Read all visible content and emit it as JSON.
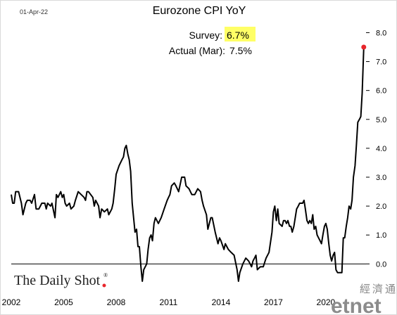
{
  "header": {
    "date": "01-Apr-22"
  },
  "chart_data": {
    "type": "line",
    "title": "Eurozone CPI YoY",
    "xlabel": "",
    "ylabel": "",
    "xlim": [
      2002.0,
      2022.3
    ],
    "ylim": [
      -0.6,
      8.4
    ],
    "x_ticks": [
      2002,
      2005,
      2008,
      2011,
      2014,
      2017,
      2020
    ],
    "x_tick_labels": [
      "2002",
      "2005",
      "2008",
      "2011",
      "2014",
      "2017",
      "2020"
    ],
    "y_ticks": [
      0.0,
      1.0,
      2.0,
      3.0,
      4.0,
      5.0,
      6.0,
      7.0,
      8.0
    ],
    "y_tick_labels": [
      "0.0",
      "1.0",
      "2.0",
      "3.0",
      "4.0",
      "5.0",
      "6.0",
      "7.0",
      "8.0"
    ],
    "y_axis_side": "right",
    "zero_line": true,
    "grid": false,
    "line_color": "#000000",
    "end_marker_color": "#e8262c",
    "annotations": {
      "survey_label": "Survey:",
      "survey_value": "6.7%",
      "survey_highlight": "#ffff66",
      "actual_label": "Actual (Mar):",
      "actual_value": "7.5%"
    },
    "series": [
      {
        "values": [
          [
            2002.0,
            2.4
          ],
          [
            2002.08,
            2.1
          ],
          [
            2002.17,
            2.1
          ],
          [
            2002.25,
            2.5
          ],
          [
            2002.42,
            2.5
          ],
          [
            2002.58,
            2.1
          ],
          [
            2002.67,
            1.7
          ],
          [
            2002.83,
            2.1
          ],
          [
            2002.92,
            2.2
          ],
          [
            2003.08,
            2.2
          ],
          [
            2003.17,
            2.1
          ],
          [
            2003.33,
            2.4
          ],
          [
            2003.42,
            1.9
          ],
          [
            2003.58,
            1.9
          ],
          [
            2003.75,
            2.1
          ],
          [
            2003.92,
            2.1
          ],
          [
            2004.0,
            1.9
          ],
          [
            2004.08,
            2.1
          ],
          [
            2004.25,
            2.0
          ],
          [
            2004.33,
            2.1
          ],
          [
            2004.5,
            1.6
          ],
          [
            2004.58,
            2.4
          ],
          [
            2004.67,
            2.3
          ],
          [
            2004.83,
            2.5
          ],
          [
            2004.92,
            2.3
          ],
          [
            2005.0,
            2.4
          ],
          [
            2005.08,
            2.1
          ],
          [
            2005.17,
            2.0
          ],
          [
            2005.33,
            2.1
          ],
          [
            2005.42,
            1.9
          ],
          [
            2005.58,
            2.0
          ],
          [
            2005.67,
            2.2
          ],
          [
            2005.83,
            2.5
          ],
          [
            2006.0,
            2.4
          ],
          [
            2006.17,
            2.3
          ],
          [
            2006.25,
            2.2
          ],
          [
            2006.33,
            2.5
          ],
          [
            2006.42,
            2.5
          ],
          [
            2006.67,
            2.3
          ],
          [
            2006.75,
            2.0
          ],
          [
            2006.83,
            2.2
          ],
          [
            2007.0,
            2.0
          ],
          [
            2007.08,
            1.6
          ],
          [
            2007.17,
            1.9
          ],
          [
            2007.33,
            1.8
          ],
          [
            2007.5,
            1.9
          ],
          [
            2007.58,
            1.7
          ],
          [
            2007.75,
            1.9
          ],
          [
            2007.83,
            2.1
          ],
          [
            2007.92,
            2.6
          ],
          [
            2008.0,
            3.1
          ],
          [
            2008.17,
            3.4
          ],
          [
            2008.33,
            3.6
          ],
          [
            2008.42,
            3.7
          ],
          [
            2008.5,
            4.0
          ],
          [
            2008.58,
            4.1
          ],
          [
            2008.67,
            3.8
          ],
          [
            2008.75,
            3.6
          ],
          [
            2008.83,
            3.2
          ],
          [
            2008.92,
            2.1
          ],
          [
            2009.0,
            1.6
          ],
          [
            2009.08,
            1.1
          ],
          [
            2009.17,
            1.2
          ],
          [
            2009.25,
            0.6
          ],
          [
            2009.33,
            0.6
          ],
          [
            2009.42,
            -0.1
          ],
          [
            2009.5,
            -0.6
          ],
          [
            2009.58,
            -0.2
          ],
          [
            2009.75,
            0.0
          ],
          [
            2009.83,
            0.5
          ],
          [
            2009.92,
            0.9
          ],
          [
            2010.0,
            1.0
          ],
          [
            2010.08,
            0.8
          ],
          [
            2010.17,
            1.4
          ],
          [
            2010.25,
            1.6
          ],
          [
            2010.42,
            1.4
          ],
          [
            2010.58,
            1.6
          ],
          [
            2010.75,
            1.9
          ],
          [
            2010.92,
            2.2
          ],
          [
            2011.0,
            2.3
          ],
          [
            2011.08,
            2.4
          ],
          [
            2011.17,
            2.7
          ],
          [
            2011.33,
            2.8
          ],
          [
            2011.42,
            2.7
          ],
          [
            2011.58,
            2.5
          ],
          [
            2011.75,
            3.0
          ],
          [
            2011.92,
            3.0
          ],
          [
            2012.0,
            2.7
          ],
          [
            2012.17,
            2.6
          ],
          [
            2012.33,
            2.4
          ],
          [
            2012.5,
            2.4
          ],
          [
            2012.67,
            2.6
          ],
          [
            2012.83,
            2.5
          ],
          [
            2012.92,
            2.2
          ],
          [
            2013.0,
            2.0
          ],
          [
            2013.17,
            1.7
          ],
          [
            2013.25,
            1.2
          ],
          [
            2013.42,
            1.6
          ],
          [
            2013.5,
            1.6
          ],
          [
            2013.67,
            1.1
          ],
          [
            2013.83,
            0.7
          ],
          [
            2013.92,
            0.9
          ],
          [
            2014.0,
            0.8
          ],
          [
            2014.17,
            0.5
          ],
          [
            2014.25,
            0.7
          ],
          [
            2014.42,
            0.5
          ],
          [
            2014.58,
            0.4
          ],
          [
            2014.75,
            0.3
          ],
          [
            2014.92,
            -0.2
          ],
          [
            2015.0,
            -0.6
          ],
          [
            2015.08,
            -0.3
          ],
          [
            2015.25,
            0.0
          ],
          [
            2015.42,
            0.2
          ],
          [
            2015.58,
            0.1
          ],
          [
            2015.75,
            -0.1
          ],
          [
            2015.83,
            0.1
          ],
          [
            2015.92,
            0.2
          ],
          [
            2016.0,
            0.3
          ],
          [
            2016.08,
            -0.2
          ],
          [
            2016.25,
            -0.1
          ],
          [
            2016.42,
            -0.1
          ],
          [
            2016.58,
            0.2
          ],
          [
            2016.75,
            0.4
          ],
          [
            2016.92,
            1.1
          ],
          [
            2017.0,
            1.8
          ],
          [
            2017.08,
            2.0
          ],
          [
            2017.17,
            1.5
          ],
          [
            2017.25,
            1.9
          ],
          [
            2017.33,
            1.4
          ],
          [
            2017.5,
            1.3
          ],
          [
            2017.58,
            1.5
          ],
          [
            2017.67,
            1.5
          ],
          [
            2017.75,
            1.4
          ],
          [
            2017.83,
            1.5
          ],
          [
            2017.92,
            1.3
          ],
          [
            2018.0,
            1.3
          ],
          [
            2018.08,
            1.1
          ],
          [
            2018.17,
            1.3
          ],
          [
            2018.33,
            1.9
          ],
          [
            2018.42,
            2.0
          ],
          [
            2018.5,
            2.1
          ],
          [
            2018.67,
            2.1
          ],
          [
            2018.75,
            2.2
          ],
          [
            2018.83,
            1.9
          ],
          [
            2018.92,
            1.5
          ],
          [
            2019.0,
            1.4
          ],
          [
            2019.08,
            1.5
          ],
          [
            2019.17,
            1.4
          ],
          [
            2019.25,
            1.7
          ],
          [
            2019.33,
            1.2
          ],
          [
            2019.42,
            1.3
          ],
          [
            2019.5,
            1.0
          ],
          [
            2019.67,
            0.8
          ],
          [
            2019.75,
            0.7
          ],
          [
            2019.83,
            1.0
          ],
          [
            2019.92,
            1.3
          ],
          [
            2020.0,
            1.4
          ],
          [
            2020.08,
            1.2
          ],
          [
            2020.17,
            0.7
          ],
          [
            2020.25,
            0.3
          ],
          [
            2020.33,
            0.1
          ],
          [
            2020.42,
            0.3
          ],
          [
            2020.5,
            0.4
          ],
          [
            2020.58,
            -0.2
          ],
          [
            2020.67,
            -0.3
          ],
          [
            2020.75,
            -0.3
          ],
          [
            2020.83,
            -0.3
          ],
          [
            2020.92,
            -0.3
          ],
          [
            2021.0,
            0.9
          ],
          [
            2021.08,
            0.9
          ],
          [
            2021.17,
            1.3
          ],
          [
            2021.25,
            1.6
          ],
          [
            2021.33,
            2.0
          ],
          [
            2021.42,
            1.9
          ],
          [
            2021.5,
            2.2
          ],
          [
            2021.58,
            3.0
          ],
          [
            2021.67,
            3.4
          ],
          [
            2021.75,
            4.1
          ],
          [
            2021.83,
            4.9
          ],
          [
            2021.92,
            5.0
          ],
          [
            2022.0,
            5.1
          ],
          [
            2022.08,
            5.9
          ],
          [
            2022.17,
            7.5
          ]
        ]
      }
    ]
  },
  "branding": {
    "logo_text": "The Daily Shot",
    "logo_mark": "®",
    "source_logo_cn": "經濟通",
    "source_logo_en": "etnet"
  }
}
